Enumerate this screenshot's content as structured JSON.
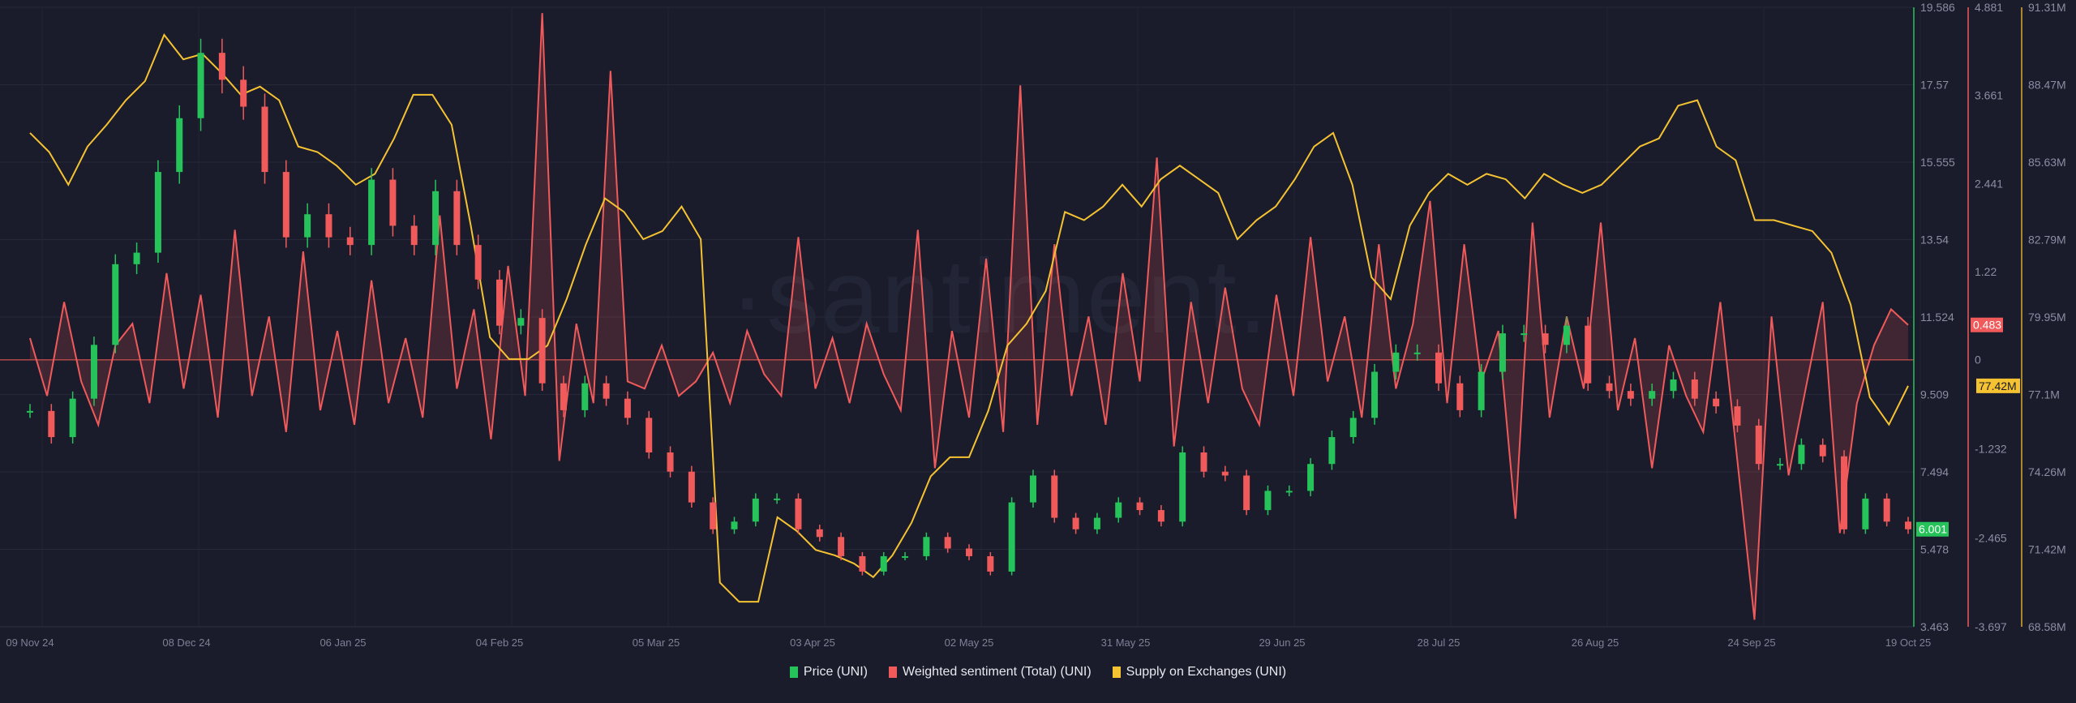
{
  "chart_data": {
    "type": "line",
    "watermark": "·santiment.",
    "x_range": [
      "2024-11-09",
      "2025-10-19"
    ],
    "x_ticks": [
      "09 Nov 24",
      "08 Dec 24",
      "06 Jan 25",
      "04 Feb 25",
      "05 Mar 25",
      "03 Apr 25",
      "02 May 25",
      "31 May 25",
      "29 Jun 25",
      "28 Jul 25",
      "26 Aug 25",
      "24 Sep 25",
      "19 Oct 25"
    ],
    "grid": true,
    "legend_position": "bottom-center",
    "series": [
      {
        "name": "Price (UNI)",
        "type": "candlestick",
        "color": "#26c35a",
        "down_color": "#f05a5a",
        "axis_ticks": [
          "19.586",
          "17.57",
          "15.555",
          "13.54",
          "11.524",
          "9.509",
          "7.494",
          "5.478",
          "3.463"
        ],
        "ylim": [
          3.463,
          19.586
        ],
        "last_value": "6.001",
        "values": [
          9.08,
          8.4,
          9.4,
          10.8,
          12.9,
          13.2,
          15.3,
          16.7,
          18.4,
          17.7,
          17.0,
          15.3,
          13.6,
          14.2,
          13.6,
          13.4,
          15.1,
          13.9,
          13.4,
          14.8,
          13.4,
          12.5,
          11.3,
          11.5,
          9.8,
          9.1,
          9.8,
          9.4,
          8.9,
          8.0,
          7.5,
          6.7,
          6.0,
          6.2,
          6.8,
          6.8,
          6.0,
          5.8,
          5.3,
          4.9,
          5.3,
          5.3,
          5.8,
          5.5,
          5.3,
          4.9,
          6.7,
          7.4,
          6.3,
          6.0,
          6.3,
          6.7,
          6.5,
          6.2,
          8.0,
          7.5,
          7.4,
          6.5,
          7.0,
          7.0,
          7.7,
          8.4,
          8.9,
          10.1,
          10.6,
          10.6,
          9.8,
          9.1,
          10.1,
          11.1,
          11.1,
          10.8,
          11.3,
          9.8,
          9.6,
          9.4,
          9.6,
          9.9,
          9.4,
          9.2,
          8.7,
          7.7,
          7.7,
          8.2,
          7.9,
          6.0,
          6.8,
          6.2,
          6.001
        ]
      },
      {
        "name": "Weighted sentiment (Total) (UNI)",
        "type": "line",
        "color": "#f05a5a",
        "axis_ticks": [
          "4.881",
          "3.661",
          "2.441",
          "1.22",
          "0",
          "-1.232",
          "-2.465",
          "-3.697"
        ],
        "ylim": [
          -3.697,
          4.881
        ],
        "last_value": "0.483",
        "values": [
          0.3,
          -0.5,
          0.8,
          -0.3,
          -0.9,
          0.2,
          0.5,
          -0.6,
          1.2,
          -0.4,
          0.9,
          -0.8,
          1.8,
          -0.5,
          0.6,
          -1.0,
          1.5,
          -0.7,
          0.4,
          -0.9,
          1.1,
          -0.6,
          0.3,
          -0.8,
          2.0,
          -0.4,
          0.7,
          -1.1,
          1.3,
          -0.5,
          4.8,
          -1.4,
          0.5,
          -0.6,
          4.0,
          -0.3,
          -0.4,
          0.2,
          -0.5,
          -0.3,
          0.1,
          -0.6,
          0.4,
          -0.2,
          -0.5,
          1.7,
          -0.4,
          0.3,
          -0.6,
          0.5,
          -0.2,
          -0.7,
          1.8,
          -1.5,
          0.4,
          -0.8,
          1.4,
          -1.0,
          3.8,
          -0.9,
          1.6,
          -0.5,
          0.6,
          -0.9,
          1.2,
          -0.3,
          2.8,
          -1.2,
          0.8,
          -0.6,
          1.0,
          -0.4,
          -0.9,
          0.9,
          -0.5,
          1.7,
          -0.3,
          0.6,
          -0.8,
          1.6,
          -0.4,
          0.5,
          2.2,
          -0.6,
          1.6,
          -0.3,
          0.4,
          -2.2,
          1.9,
          -0.8,
          0.6,
          -0.4,
          1.9,
          -0.7,
          0.3,
          -1.5,
          0.2,
          -0.5,
          -1.0,
          0.8,
          -1.4,
          -3.6,
          0.6,
          -1.6,
          -0.4,
          0.8,
          -2.4,
          -0.6,
          0.2,
          0.7,
          0.483
        ]
      },
      {
        "name": "Supply on Exchanges (UNI)",
        "type": "line",
        "color": "#f5c232",
        "axis_ticks": [
          "91.31M",
          "88.47M",
          "85.63M",
          "82.79M",
          "79.95M",
          "77.1M",
          "74.26M",
          "71.42M",
          "68.58M"
        ],
        "ylim": [
          68.58,
          91.31
        ],
        "unit": "M",
        "last_value": "77.42M",
        "values": [
          86.7,
          86.0,
          84.8,
          86.2,
          87.0,
          87.9,
          88.6,
          90.3,
          89.4,
          89.6,
          88.9,
          88.1,
          88.4,
          87.9,
          86.2,
          86.0,
          85.5,
          84.8,
          85.2,
          86.5,
          88.1,
          88.1,
          87.0,
          83.3,
          79.2,
          78.4,
          78.4,
          78.9,
          80.6,
          82.6,
          84.3,
          83.8,
          82.8,
          83.1,
          84.0,
          82.8,
          70.2,
          69.5,
          69.5,
          72.6,
          72.1,
          71.4,
          71.2,
          70.9,
          70.4,
          71.2,
          72.4,
          74.1,
          74.8,
          74.8,
          76.5,
          78.9,
          79.7,
          80.9,
          83.8,
          83.5,
          84.0,
          84.8,
          84.0,
          85.0,
          85.5,
          85.0,
          84.5,
          82.8,
          83.5,
          84.0,
          85.0,
          86.2,
          86.7,
          84.8,
          81.4,
          80.6,
          83.3,
          84.5,
          85.2,
          84.8,
          85.2,
          85.0,
          84.3,
          85.2,
          84.8,
          84.5,
          84.8,
          85.5,
          86.2,
          86.5,
          87.7,
          87.9,
          86.2,
          85.7,
          83.5,
          83.5,
          83.3,
          83.1,
          82.3,
          80.4,
          77.0,
          76.0,
          77.42
        ]
      }
    ]
  }
}
